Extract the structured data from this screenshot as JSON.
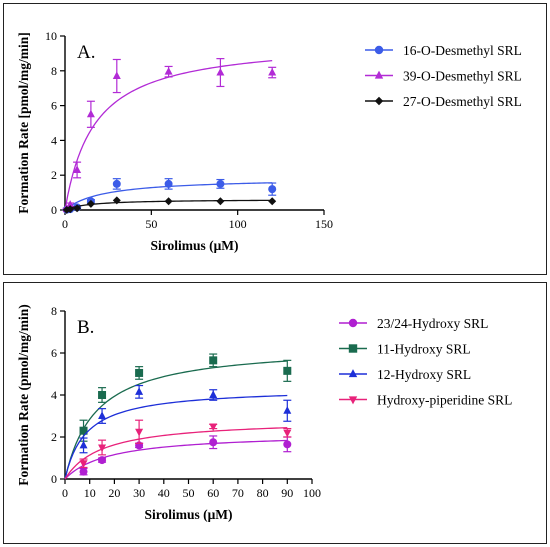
{
  "chart_data": [
    {
      "type": "scatter",
      "panel_label": "A.",
      "xlabel": "Sirolimus (μM)",
      "ylabel": "Formation Rate [pmol/mg/min]",
      "xlim": [
        0,
        150
      ],
      "ylim": [
        0,
        10
      ],
      "xticks": [
        "0",
        "50",
        "100",
        "150"
      ],
      "yticks": [
        "0",
        "2",
        "4",
        "6",
        "8",
        "10"
      ],
      "legend_position": "right",
      "series": [
        {
          "name": "16-O-Desmethyl SRL",
          "color": "#3c5ce8",
          "marker": "circle",
          "x": [
            1,
            3,
            7,
            15,
            30,
            60,
            90,
            120
          ],
          "y": [
            0.02,
            0.05,
            0.15,
            0.5,
            1.5,
            1.5,
            1.5,
            1.2
          ],
          "err": [
            0.02,
            0.03,
            0.05,
            0.1,
            0.3,
            0.3,
            0.25,
            0.35
          ],
          "fit": {
            "vmax": 1.85,
            "km": 22
          }
        },
        {
          "name": "39-O-Desmethyl SRL",
          "color": "#b22bd6",
          "marker": "triangle-up",
          "x": [
            1,
            3,
            7,
            15,
            30,
            60,
            90,
            120
          ],
          "y": [
            0.05,
            0.3,
            2.3,
            5.5,
            7.7,
            7.95,
            7.9,
            7.9
          ],
          "err": [
            0.05,
            0.1,
            0.45,
            0.75,
            0.95,
            0.3,
            0.8,
            0.3
          ],
          "fit": {
            "vmax": 9.8,
            "km": 17
          }
        },
        {
          "name": "27-O-Desmethyl SRL",
          "color": "#111111",
          "marker": "diamond",
          "x": [
            1,
            3,
            7,
            15,
            30,
            60,
            90,
            120
          ],
          "y": [
            0.01,
            0.05,
            0.1,
            0.35,
            0.55,
            0.5,
            0.5,
            0.5
          ],
          "err": [
            0,
            0,
            0,
            0,
            0,
            0,
            0,
            0
          ],
          "fit": {
            "vmax": 0.62,
            "km": 14
          }
        }
      ]
    },
    {
      "type": "scatter",
      "panel_label": "B.",
      "xlabel": "Sirolimus (μM)",
      "ylabel": "Formation Rate (pmol/mg/min)",
      "xlim": [
        0,
        100
      ],
      "ylim": [
        0,
        8
      ],
      "xticks": [
        "0",
        "10",
        "20",
        "30",
        "40",
        "50",
        "60",
        "70",
        "80",
        "90",
        "100"
      ],
      "yticks": [
        "0",
        "2",
        "4",
        "6",
        "8"
      ],
      "legend_position": "right",
      "series": [
        {
          "name": "23/24-Hydroxy SRL",
          "color": "#b01fd1",
          "marker": "circle",
          "x": [
            7.5,
            15,
            30,
            60,
            90
          ],
          "y": [
            0.35,
            0.9,
            1.6,
            1.75,
            1.65
          ],
          "err": [
            0.15,
            0.1,
            0.1,
            0.3,
            0.35
          ],
          "fit": {
            "vmax": 2.2,
            "km": 18
          }
        },
        {
          "name": "11-Hydroxy SRL",
          "color": "#1a6b4f",
          "marker": "square",
          "x": [
            7.5,
            15,
            30,
            60,
            90
          ],
          "y": [
            2.3,
            4.0,
            5.05,
            5.65,
            5.15
          ],
          "err": [
            0.5,
            0.35,
            0.3,
            0.3,
            0.5
          ],
          "fit": {
            "vmax": 6.4,
            "km": 12.5
          }
        },
        {
          "name": "12-Hydroxy SRL",
          "color": "#1d2fd8",
          "marker": "triangle-up",
          "x": [
            7.5,
            15,
            30,
            60,
            90
          ],
          "y": [
            1.6,
            3.0,
            4.15,
            4.0,
            3.25
          ],
          "err": [
            0.35,
            0.35,
            0.3,
            0.25,
            0.5
          ],
          "fit": {
            "vmax": 4.35,
            "km": 8.5
          }
        },
        {
          "name": "Hydroxy-piperidine SRL",
          "color": "#e8227a",
          "marker": "triangle-down",
          "x": [
            7.5,
            15,
            30,
            60,
            90
          ],
          "y": [
            0.75,
            1.5,
            2.25,
            2.5,
            2.2
          ],
          "err": [
            0.2,
            0.35,
            0.55,
            0.1,
            0.2
          ],
          "fit": {
            "vmax": 2.85,
            "km": 15
          }
        }
      ]
    }
  ]
}
